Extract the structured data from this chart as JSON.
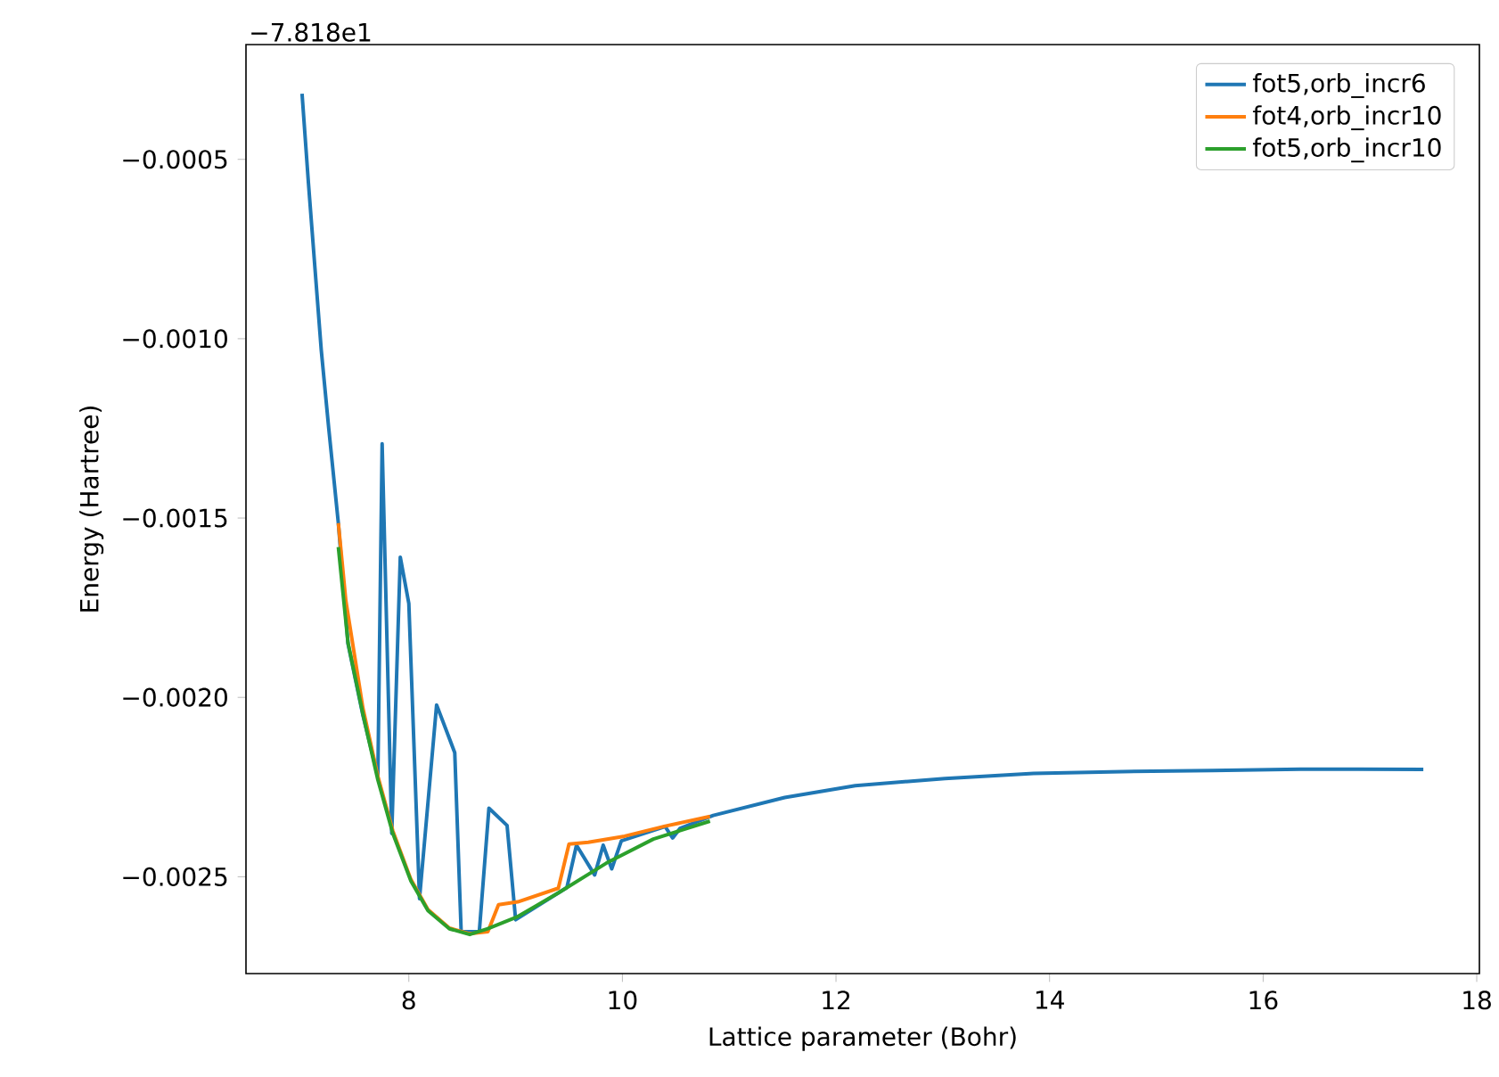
{
  "chart_data": {
    "type": "line",
    "xlabel": "Lattice parameter (Bohr)",
    "ylabel": "Energy (Hartree)",
    "annotations": [
      "−7.818e1"
    ],
    "xlim": [
      6.475,
      18.025
    ],
    "ylim": [
      -0.00277,
      -0.00018
    ],
    "xticks": [
      8,
      10,
      12,
      14,
      16,
      18
    ],
    "yticks": [
      {
        "value": -0.0025,
        "label": "−0.0025"
      },
      {
        "value": -0.002,
        "label": "−0.0020"
      },
      {
        "value": -0.0015,
        "label": "−0.0015"
      },
      {
        "value": -0.001,
        "label": "−0.0010"
      },
      {
        "value": -0.0005,
        "label": "−0.0005"
      }
    ],
    "legend": "top right",
    "grid": false,
    "marker": "none",
    "line_style": "solid",
    "series": [
      {
        "name": "fot5,orb_incr6",
        "color": "#1f77b4",
        "x": [
          7.0,
          7.06,
          7.12,
          7.18,
          7.25,
          7.34,
          7.43,
          7.57,
          7.71,
          7.75,
          7.84,
          7.92,
          8.0,
          8.1,
          8.26,
          8.43,
          8.49,
          8.66,
          8.75,
          8.92,
          9.0,
          9.48,
          9.57,
          9.74,
          9.82,
          9.9,
          9.99,
          10.4,
          10.47,
          10.54,
          10.85,
          11.52,
          12.18,
          13.02,
          13.85,
          14.68,
          15.52,
          16.35,
          17.5
        ],
        "values": [
          -0.000317,
          -0.000566,
          -0.0008,
          -0.001032,
          -0.00125,
          -0.001514,
          -0.00185,
          -0.00205,
          -0.00222,
          -0.001293,
          -0.002379,
          -0.001609,
          -0.001738,
          -0.002561,
          -0.002021,
          -0.002154,
          -0.002653,
          -0.002653,
          -0.002309,
          -0.002357,
          -0.00262,
          -0.00253,
          -0.002412,
          -0.002495,
          -0.002412,
          -0.002478,
          -0.0024,
          -0.00236,
          -0.002392,
          -0.002365,
          -0.002329,
          -0.002279,
          -0.002246,
          -0.002226,
          -0.002212,
          -0.002207,
          -0.002204,
          -0.0022,
          -0.002201
        ]
      },
      {
        "name": "fot4,orb_incr10",
        "color": "#ff7f0e",
        "x": [
          7.34,
          7.41,
          7.57,
          7.71,
          7.85,
          8.02,
          8.18,
          8.38,
          8.57,
          8.74,
          8.84,
          9.02,
          9.4,
          9.5,
          9.68,
          10.02,
          10.4,
          10.82
        ],
        "values": [
          -0.001514,
          -0.00173,
          -0.00203,
          -0.00222,
          -0.002372,
          -0.002508,
          -0.002592,
          -0.002643,
          -0.002659,
          -0.002653,
          -0.002578,
          -0.00257,
          -0.002532,
          -0.002409,
          -0.002404,
          -0.002387,
          -0.002359,
          -0.002332
        ]
      },
      {
        "name": "fot5,orb_incr10",
        "color": "#2ca02c",
        "x": [
          7.34,
          7.43,
          7.57,
          7.71,
          7.85,
          8.02,
          8.18,
          8.38,
          8.57,
          8.74,
          9.02,
          9.4,
          9.85,
          10.29,
          10.82
        ],
        "values": [
          -0.001581,
          -0.001847,
          -0.002046,
          -0.00223,
          -0.002379,
          -0.002512,
          -0.002595,
          -0.002645,
          -0.002661,
          -0.002645,
          -0.002611,
          -0.002545,
          -0.002462,
          -0.002395,
          -0.002345
        ]
      }
    ]
  }
}
